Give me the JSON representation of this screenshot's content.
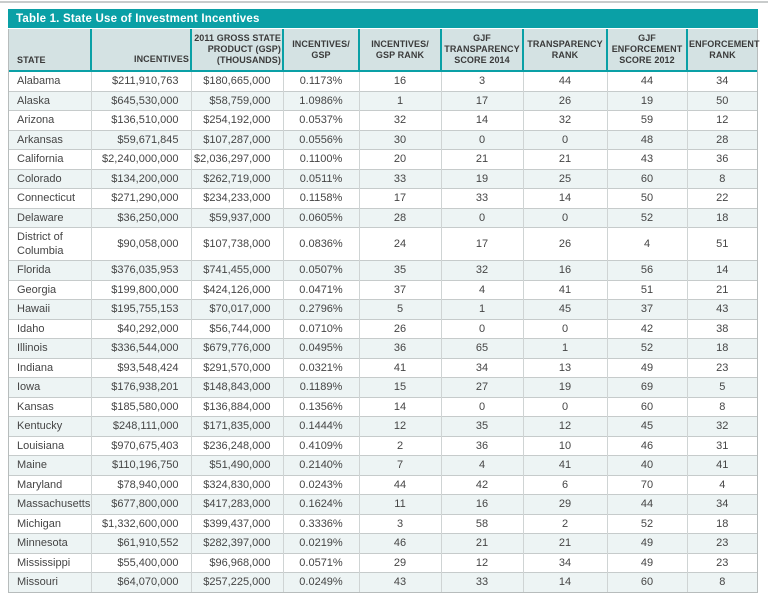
{
  "table": {
    "title": "Table 1. State Use of Investment Incentives",
    "accent_color": "#0aa0a6",
    "header_bg_color": "#d4e2e3",
    "alt_row_color": "#edf4f4",
    "columns": [
      {
        "id": "state",
        "label": "STATE",
        "align": "left"
      },
      {
        "id": "incentives",
        "label": "INCENTIVES",
        "align": "right"
      },
      {
        "id": "gsp",
        "label": "2011 GROSS STATE\nPRODUCT (GSP)\n(THOUSANDS)",
        "align": "right"
      },
      {
        "id": "inc_gsp",
        "label": "INCENTIVES/\nGSP",
        "align": "center"
      },
      {
        "id": "inc_gsp_rank",
        "label": "INCENTIVES/\nGSP RANK",
        "align": "center"
      },
      {
        "id": "gjf_transparency_score_2014",
        "label": "GJF\nTRANSPARENCY\nSCORE 2014",
        "align": "center"
      },
      {
        "id": "transparency_rank",
        "label": "TRANSPARENCY\nRANK",
        "align": "center"
      },
      {
        "id": "gjf_enforcement_score_2012",
        "label": "GJF\nENFORCEMENT\nSCORE 2012",
        "align": "center"
      },
      {
        "id": "enforcement_rank",
        "label": "ENFORCEMENT\nRANK",
        "align": "center"
      }
    ],
    "rows": [
      [
        "Alabama",
        "$211,910,763",
        "$180,665,000",
        "0.1173%",
        "16",
        "3",
        "44",
        "44",
        "34"
      ],
      [
        "Alaska",
        "$645,530,000",
        "$58,759,000",
        "1.0986%",
        "1",
        "17",
        "26",
        "19",
        "50"
      ],
      [
        "Arizona",
        "$136,510,000",
        "$254,192,000",
        "0.0537%",
        "32",
        "14",
        "32",
        "59",
        "12"
      ],
      [
        "Arkansas",
        "$59,671,845",
        "$107,287,000",
        "0.0556%",
        "30",
        "0",
        "0",
        "48",
        "28"
      ],
      [
        "California",
        "$2,240,000,000",
        "$2,036,297,000",
        "0.1100%",
        "20",
        "21",
        "21",
        "43",
        "36"
      ],
      [
        "Colorado",
        "$134,200,000",
        "$262,719,000",
        "0.0511%",
        "33",
        "19",
        "25",
        "60",
        "8"
      ],
      [
        "Connecticut",
        "$271,290,000",
        "$234,233,000",
        "0.1158%",
        "17",
        "33",
        "14",
        "50",
        "22"
      ],
      [
        "Delaware",
        "$36,250,000",
        "$59,937,000",
        "0.0605%",
        "28",
        "0",
        "0",
        "52",
        "18"
      ],
      [
        "District of\nColumbia",
        "$90,058,000",
        "$107,738,000",
        "0.0836%",
        "24",
        "17",
        "26",
        "4",
        "51"
      ],
      [
        "Florida",
        "$376,035,953",
        "$741,455,000",
        "0.0507%",
        "35",
        "32",
        "16",
        "56",
        "14"
      ],
      [
        "Georgia",
        "$199,800,000",
        "$424,126,000",
        "0.0471%",
        "37",
        "4",
        "41",
        "51",
        "21"
      ],
      [
        "Hawaii",
        "$195,755,153",
        "$70,017,000",
        "0.2796%",
        "5",
        "1",
        "45",
        "37",
        "43"
      ],
      [
        "Idaho",
        "$40,292,000",
        "$56,744,000",
        "0.0710%",
        "26",
        "0",
        "0",
        "42",
        "38"
      ],
      [
        "Illinois",
        "$336,544,000",
        "$679,776,000",
        "0.0495%",
        "36",
        "65",
        "1",
        "52",
        "18"
      ],
      [
        "Indiana",
        "$93,548,424",
        "$291,570,000",
        "0.0321%",
        "41",
        "34",
        "13",
        "49",
        "23"
      ],
      [
        "Iowa",
        "$176,938,201",
        "$148,843,000",
        "0.1189%",
        "15",
        "27",
        "19",
        "69",
        "5"
      ],
      [
        "Kansas",
        "$185,580,000",
        "$136,884,000",
        "0.1356%",
        "14",
        "0",
        "0",
        "60",
        "8"
      ],
      [
        "Kentucky",
        "$248,111,000",
        "$171,835,000",
        "0.1444%",
        "12",
        "35",
        "12",
        "45",
        "32"
      ],
      [
        "Louisiana",
        "$970,675,403",
        "$236,248,000",
        "0.4109%",
        "2",
        "36",
        "10",
        "46",
        "31"
      ],
      [
        "Maine",
        "$110,196,750",
        "$51,490,000",
        "0.2140%",
        "7",
        "4",
        "41",
        "40",
        "41"
      ],
      [
        "Maryland",
        "$78,940,000",
        "$324,830,000",
        "0.0243%",
        "44",
        "42",
        "6",
        "70",
        "4"
      ],
      [
        "Massachusetts",
        "$677,800,000",
        "$417,283,000",
        "0.1624%",
        "11",
        "16",
        "29",
        "44",
        "34"
      ],
      [
        "Michigan",
        "$1,332,600,000",
        "$399,437,000",
        "0.3336%",
        "3",
        "58",
        "2",
        "52",
        "18"
      ],
      [
        "Minnesota",
        "$61,910,552",
        "$282,397,000",
        "0.0219%",
        "46",
        "21",
        "21",
        "49",
        "23"
      ],
      [
        "Mississippi",
        "$55,400,000",
        "$96,968,000",
        "0.0571%",
        "29",
        "12",
        "34",
        "49",
        "23"
      ],
      [
        "Missouri",
        "$64,070,000",
        "$257,225,000",
        "0.0249%",
        "43",
        "33",
        "14",
        "60",
        "8"
      ]
    ]
  }
}
